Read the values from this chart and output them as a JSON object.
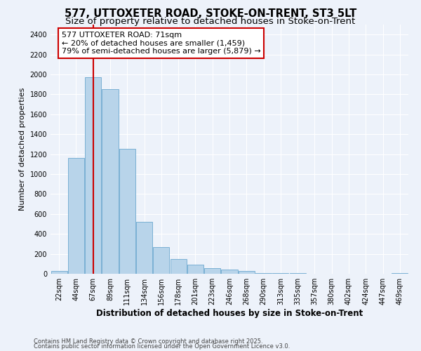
{
  "title": "577, UTTOXETER ROAD, STOKE-ON-TRENT, ST3 5LT",
  "subtitle": "Size of property relative to detached houses in Stoke-on-Trent",
  "xlabel": "Distribution of detached houses by size in Stoke-on-Trent",
  "ylabel": "Number of detached properties",
  "categories": [
    "22sqm",
    "44sqm",
    "67sqm",
    "89sqm",
    "111sqm",
    "134sqm",
    "156sqm",
    "178sqm",
    "201sqm",
    "223sqm",
    "246sqm",
    "268sqm",
    "290sqm",
    "313sqm",
    "335sqm",
    "357sqm",
    "380sqm",
    "402sqm",
    "424sqm",
    "447sqm",
    "469sqm"
  ],
  "values": [
    25,
    1160,
    1970,
    1850,
    1250,
    520,
    270,
    150,
    90,
    55,
    40,
    30,
    10,
    5,
    4,
    3,
    2,
    2,
    2,
    2,
    10
  ],
  "bar_color": "#b8d4ea",
  "bar_edge_color": "#7ab0d4",
  "red_line_index": 2,
  "annotation_line1": "577 UTTOXETER ROAD: 71sqm",
  "annotation_line2": "← 20% of detached houses are smaller (1,459)",
  "annotation_line3": "79% of semi-detached houses are larger (5,879) →",
  "annotation_box_color": "#ffffff",
  "annotation_box_edge": "#cc0000",
  "ylim": [
    0,
    2500
  ],
  "yticks": [
    0,
    200,
    400,
    600,
    800,
    1000,
    1200,
    1400,
    1600,
    1800,
    2000,
    2200,
    2400
  ],
  "footer_line1": "Contains HM Land Registry data © Crown copyright and database right 2025.",
  "footer_line2": "Contains public sector information licensed under the Open Government Licence v3.0.",
  "bg_color": "#edf2fa",
  "grid_color": "#ffffff",
  "title_fontsize": 10.5,
  "subtitle_fontsize": 9.5,
  "tick_fontsize": 7,
  "xlabel_fontsize": 8.5,
  "ylabel_fontsize": 8,
  "annotation_fontsize": 8,
  "footer_fontsize": 6
}
